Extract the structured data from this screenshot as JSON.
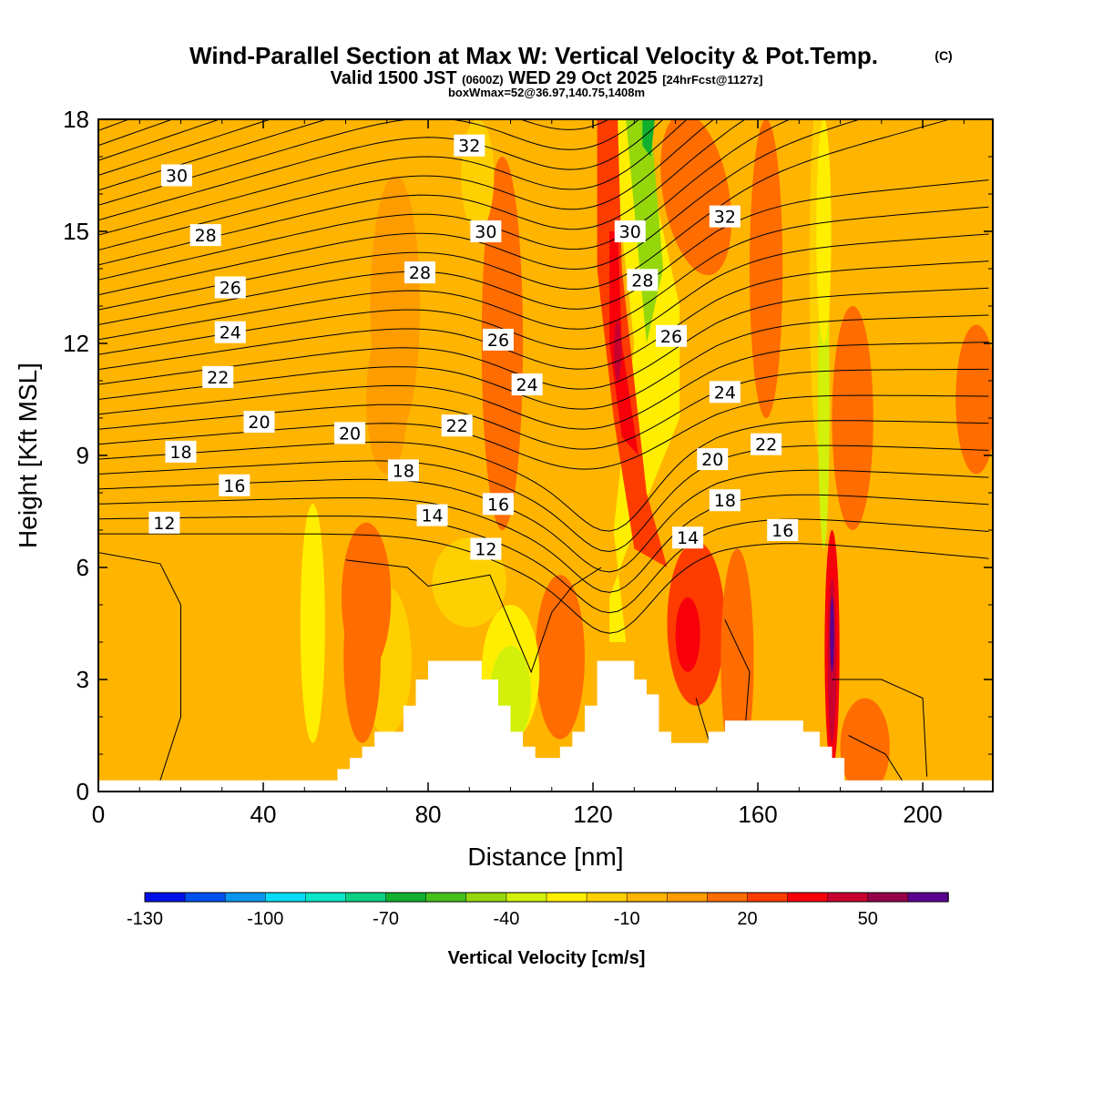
{
  "title": {
    "main": "Wind-Parallel Section at Max W: Vertical Velocity & Pot.Temp.",
    "copyright": "(C)",
    "valid_prefix": "Valid 1500 JST",
    "valid_utc": "(0600Z)",
    "valid_date": "WED 29 Oct 2025",
    "forecast": "[24hrFcst@1127z]",
    "box_info": "boxWmax=52@36.97,140.75,1408m"
  },
  "chart_data": {
    "type": "heatmap",
    "xlabel": "Distance [nm]",
    "ylabel": "Height [Kft MSL]",
    "xlim": [
      0,
      217
    ],
    "ylim": [
      0,
      18
    ],
    "x_ticks": [
      0,
      40,
      80,
      120,
      160,
      200
    ],
    "y_ticks": [
      0,
      3,
      6,
      9,
      12,
      15,
      18
    ],
    "colorbar": {
      "label": "Vertical Velocity [cm/s]",
      "tick_labels": [
        "-130",
        "-100",
        "-70",
        "-40",
        "-10",
        "20",
        "50"
      ],
      "tick_values": [
        -130,
        -100,
        -70,
        -40,
        -10,
        20,
        50
      ],
      "levels": [
        -130,
        -120,
        -110,
        -100,
        -90,
        -80,
        -70,
        -60,
        -50,
        -40,
        -30,
        -20,
        -10,
        0,
        10,
        20,
        30,
        40,
        50,
        60,
        70
      ],
      "colors": [
        "#0010e8",
        "#0050f0",
        "#0a96f0",
        "#06dcf5",
        "#0ae6c8",
        "#0ad282",
        "#10b02e",
        "#46c01c",
        "#96d70c",
        "#d2f00a",
        "#ffee00",
        "#ffd000",
        "#ffb400",
        "#ff9c00",
        "#ff6c00",
        "#ff3c00",
        "#f8000a",
        "#c80030",
        "#96004a",
        "#5a0090"
      ]
    },
    "theta_labels": [
      {
        "x": 19,
        "y": 16.5,
        "text": "30"
      },
      {
        "x": 26,
        "y": 14.9,
        "text": "28"
      },
      {
        "x": 32,
        "y": 13.5,
        "text": "26"
      },
      {
        "x": 32,
        "y": 12.3,
        "text": "24"
      },
      {
        "x": 29,
        "y": 11.1,
        "text": "22"
      },
      {
        "x": 39,
        "y": 9.9,
        "text": "20"
      },
      {
        "x": 20,
        "y": 9.1,
        "text": "18"
      },
      {
        "x": 33,
        "y": 8.2,
        "text": "16"
      },
      {
        "x": 16,
        "y": 7.2,
        "text": "12"
      },
      {
        "x": 90,
        "y": 17.3,
        "text": "32"
      },
      {
        "x": 94,
        "y": 15.0,
        "text": "30"
      },
      {
        "x": 78,
        "y": 13.9,
        "text": "28"
      },
      {
        "x": 97,
        "y": 12.1,
        "text": "26"
      },
      {
        "x": 104,
        "y": 10.9,
        "text": "24"
      },
      {
        "x": 87,
        "y": 9.8,
        "text": "22"
      },
      {
        "x": 61,
        "y": 9.6,
        "text": "20"
      },
      {
        "x": 74,
        "y": 8.6,
        "text": "18"
      },
      {
        "x": 97,
        "y": 7.7,
        "text": "16"
      },
      {
        "x": 81,
        "y": 7.4,
        "text": "14"
      },
      {
        "x": 94,
        "y": 6.5,
        "text": "12"
      },
      {
        "x": 129,
        "y": 15.0,
        "text": "30"
      },
      {
        "x": 132,
        "y": 13.7,
        "text": "28"
      },
      {
        "x": 139,
        "y": 12.2,
        "text": "26"
      },
      {
        "x": 152,
        "y": 15.4,
        "text": "32"
      },
      {
        "x": 152,
        "y": 10.7,
        "text": "24"
      },
      {
        "x": 162,
        "y": 9.3,
        "text": "22"
      },
      {
        "x": 149,
        "y": 8.9,
        "text": "20"
      },
      {
        "x": 152,
        "y": 7.8,
        "text": "18"
      },
      {
        "x": 166,
        "y": 7.0,
        "text": "16"
      },
      {
        "x": 143,
        "y": 6.8,
        "text": "14"
      }
    ]
  }
}
